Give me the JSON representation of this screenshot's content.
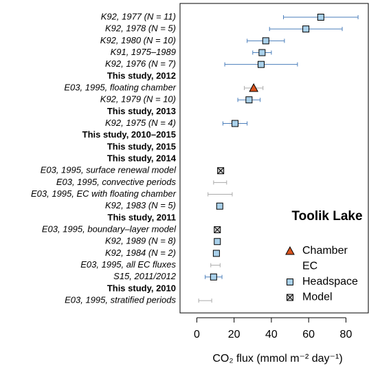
{
  "chart_data": {
    "type": "forest",
    "categories": [
      "K92, 1977 (N = 11)",
      "K92, 1978 (N = 5)",
      "K92, 1980 (N = 10)",
      "K91, 1975–1989",
      "K92, 1976 (N = 7)",
      "This study, 2012",
      "E03, 1995, floating chamber",
      "K92, 1979 (N = 10)",
      "This study, 2013",
      "K92, 1975 (N = 4)",
      "This study, 2010–2015",
      "This study, 2015",
      "This study, 2014",
      "E03, 1995, surface renewal model",
      "E03, 1995, convective periods",
      "E03, 1995, EC with floating chamber",
      "K92, 1983 (N = 5)",
      "This study, 2011",
      "E03, 1995, boundary–layer model",
      "K92, 1989 (N = 8)",
      "K92, 1984 (N = 2)",
      "E03, 1995, all EC fluxes",
      "S15, 2011/2012",
      "This study, 2010",
      "E03, 1995, stratified periods"
    ],
    "category_bold": [
      false,
      false,
      false,
      false,
      false,
      true,
      false,
      false,
      true,
      false,
      true,
      true,
      true,
      false,
      false,
      false,
      false,
      true,
      false,
      false,
      false,
      false,
      false,
      true,
      false
    ],
    "series": [
      {
        "name": "Chamber",
        "marker": "triangle",
        "color": "#d9531e",
        "error_color": "#aaaaaa",
        "values": [
          null,
          null,
          null,
          null,
          null,
          null,
          30.5,
          null,
          null,
          null,
          null,
          null,
          null,
          null,
          null,
          null,
          null,
          null,
          null,
          null,
          null,
          null,
          null,
          null,
          null
        ],
        "errors": [
          null,
          null,
          null,
          null,
          null,
          null,
          5,
          null,
          null,
          null,
          null,
          null,
          null,
          null,
          null,
          null,
          null,
          null,
          null,
          null,
          null,
          null,
          null,
          null,
          null
        ]
      },
      {
        "name": "EC",
        "marker": "none",
        "color": "#aaaaaa",
        "error_color": "#aaaaaa",
        "values": [
          null,
          null,
          null,
          null,
          null,
          null,
          null,
          null,
          null,
          null,
          null,
          null,
          null,
          null,
          12.5,
          12.5,
          null,
          null,
          null,
          null,
          null,
          10,
          null,
          null,
          4.5
        ],
        "errors": [
          null,
          null,
          null,
          null,
          null,
          null,
          null,
          null,
          null,
          null,
          null,
          null,
          null,
          null,
          3.5,
          6.5,
          null,
          null,
          null,
          null,
          null,
          2.5,
          null,
          null,
          3.5
        ]
      },
      {
        "name": "Headspace",
        "marker": "square",
        "color": "#a9d0ea",
        "error_color": "#4a7ebb",
        "values": [
          66.5,
          58.5,
          37,
          35,
          34.5,
          null,
          null,
          28,
          null,
          20.5,
          null,
          null,
          null,
          null,
          null,
          null,
          12.3,
          null,
          null,
          11,
          10.5,
          null,
          9,
          null,
          null
        ],
        "errors": [
          20,
          19.5,
          10,
          5,
          19.5,
          null,
          null,
          6,
          null,
          6.5,
          null,
          null,
          null,
          null,
          null,
          null,
          null,
          null,
          null,
          1,
          null,
          null,
          4.5,
          null,
          null
        ]
      },
      {
        "name": "Model",
        "marker": "crossed-square",
        "color": "#d0d0d0",
        "error_color": "#aaaaaa",
        "values": [
          null,
          null,
          null,
          null,
          null,
          null,
          null,
          null,
          null,
          null,
          null,
          null,
          null,
          12.8,
          null,
          null,
          null,
          null,
          11,
          null,
          null,
          null,
          null,
          null,
          null
        ]
      }
    ],
    "annotation": "Toolik Lake",
    "annotation_color": "#4a7ebb",
    "xlabel": "CO₂ flux (mmol m⁻² day⁻¹)",
    "xlim": [
      -9,
      92
    ],
    "xticks": [
      0,
      20,
      40,
      60,
      80
    ],
    "legend": "lower right"
  }
}
